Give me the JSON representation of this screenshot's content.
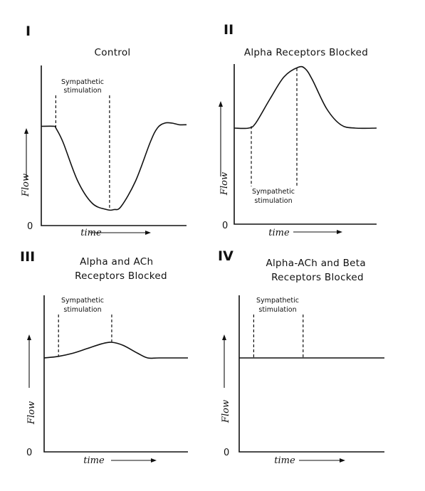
{
  "chart_data": [
    {
      "type": "line",
      "panel": "I",
      "title": "Control",
      "annotation": [
        "Sympathetic",
        "stimulation"
      ],
      "annotation_position": "top",
      "xlabel": "time",
      "ylabel": "Flow",
      "y_zero_label": "0",
      "x": [
        0,
        0.09,
        0.1,
        0.15,
        0.25,
        0.35,
        0.45,
        0.5,
        0.55,
        0.65,
        0.75,
        0.8,
        0.85,
        0.9,
        0.95,
        1.0
      ],
      "y": [
        0.62,
        0.62,
        0.61,
        0.52,
        0.28,
        0.14,
        0.1,
        0.1,
        0.12,
        0.28,
        0.52,
        0.61,
        0.64,
        0.64,
        0.63,
        0.63
      ],
      "stimulation": [
        0.1,
        0.47
      ],
      "xlim": [
        0,
        1
      ],
      "ylim": [
        0,
        1
      ],
      "grid": false
    },
    {
      "type": "line",
      "panel": "II",
      "title": "Alpha Receptors Blocked",
      "annotation": [
        "Sympathetic",
        "stimulation"
      ],
      "annotation_position": "bottom",
      "xlabel": "time",
      "ylabel": "Flow",
      "y_zero_label": "0",
      "x": [
        0,
        0.1,
        0.15,
        0.25,
        0.35,
        0.45,
        0.5,
        0.55,
        0.65,
        0.75,
        0.85,
        1.0
      ],
      "y": [
        0.6,
        0.6,
        0.63,
        0.78,
        0.92,
        0.98,
        0.97,
        0.9,
        0.72,
        0.62,
        0.6,
        0.6
      ],
      "stimulation": [
        0.12,
        0.44
      ],
      "xlim": [
        0,
        1
      ],
      "ylim": [
        0,
        1
      ],
      "grid": false
    },
    {
      "type": "line",
      "panel": "III",
      "title": "Alpha and ACh\nReceptors Blocked",
      "annotation": [
        "Sympathetic",
        "stimulation"
      ],
      "annotation_position": "top",
      "xlabel": "time",
      "ylabel": "Flow",
      "y_zero_label": "0",
      "x": [
        0,
        0.1,
        0.2,
        0.3,
        0.4,
        0.47,
        0.55,
        0.65,
        0.72,
        0.8,
        1.0
      ],
      "y": [
        0.6,
        0.61,
        0.63,
        0.66,
        0.69,
        0.7,
        0.68,
        0.63,
        0.6,
        0.6,
        0.6
      ],
      "stimulation": [
        0.1,
        0.47
      ],
      "xlim": [
        0,
        1
      ],
      "ylim": [
        0,
        1
      ],
      "grid": false
    },
    {
      "type": "line",
      "panel": "IV",
      "title": "Alpha-ACh and Beta\nReceptors Blocked",
      "annotation": [
        "Sympathetic",
        "stimulation"
      ],
      "annotation_position": "top",
      "xlabel": "time",
      "ylabel": "Flow",
      "y_zero_label": "0",
      "x": [
        0,
        1.0
      ],
      "y": [
        0.6,
        0.6
      ],
      "stimulation": [
        0.1,
        0.44
      ],
      "xlim": [
        0,
        1
      ],
      "ylim": [
        0,
        1
      ],
      "grid": false
    }
  ]
}
